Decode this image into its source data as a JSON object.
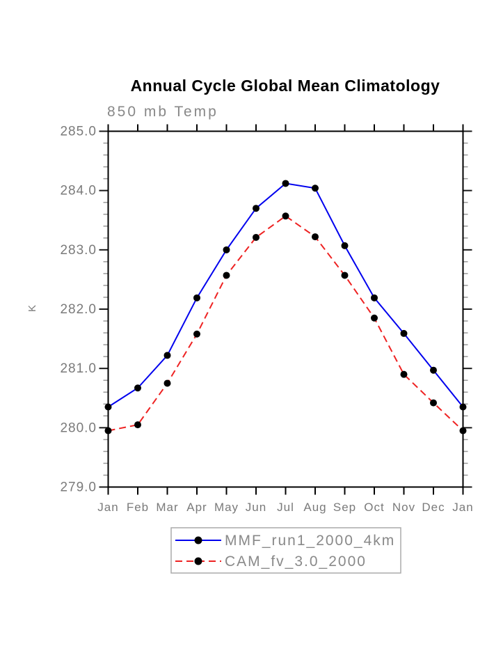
{
  "page": {
    "background": "#ffffff"
  },
  "chart_data": {
    "type": "line",
    "title": "Annual Cycle Global Mean Climatology",
    "subtitle": "850 mb Temp",
    "ylabel": "K",
    "xlabel": "",
    "ylim": [
      279.0,
      285.0
    ],
    "y_major_step": 1.0,
    "y_minor_step": 0.2,
    "y_tick_labels": [
      "285.0",
      "284.0",
      "283.0",
      "282.0",
      "281.0",
      "280.0",
      "279.0"
    ],
    "categories": [
      "Jan",
      "Feb",
      "Mar",
      "Apr",
      "May",
      "Jun",
      "Jul",
      "Aug",
      "Sep",
      "Oct",
      "Nov",
      "Dec",
      "Jan"
    ],
    "grid": false,
    "legend_position": "bottom-center",
    "series": [
      {
        "name": "MMF_run1_2000_4km",
        "color": "#0000ee",
        "line_style": "solid",
        "marker": "filled-circle",
        "marker_color": "#000000",
        "values": [
          280.35,
          280.67,
          281.22,
          282.19,
          283.0,
          283.7,
          284.12,
          284.04,
          283.07,
          282.19,
          281.59,
          280.97,
          280.35
        ]
      },
      {
        "name": "CAM_fv_3.0_2000",
        "color": "#ee2222",
        "line_style": "dashed",
        "marker": "filled-circle",
        "marker_color": "#000000",
        "values": [
          279.95,
          280.05,
          280.75,
          281.58,
          282.57,
          283.21,
          283.57,
          283.22,
          282.57,
          281.85,
          280.9,
          280.42,
          279.95
        ]
      }
    ],
    "colors": {
      "axis": "#000000",
      "major_tick": "#1a1a1a",
      "minor_tick": "#999999",
      "tick_label": "#7a7a7a",
      "title": "#000000",
      "subtitle": "#888888",
      "legend_border": "#aaaaaa",
      "legend_text": "#898989"
    }
  }
}
